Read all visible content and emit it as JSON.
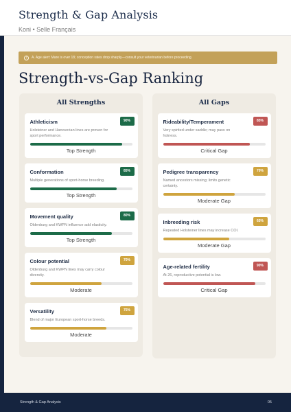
{
  "header": {
    "title": "Strength & Gap Analysis",
    "subtitle": "Koni • Selle Français"
  },
  "alert": {
    "text": "A. Age alert: Mare is over 18; conception rates drop sharply—consult your veterinarian before proceeding."
  },
  "page_title": "Strength-vs-Gap Ranking",
  "colors": {
    "strong": "#1c6b48",
    "moderate": "#cfa43e",
    "critical": "#c05654",
    "navy": "#15243f"
  },
  "strengths": {
    "title": "All Strengths",
    "items": [
      {
        "name": "Athleticism",
        "desc": "Holsteiner and Hanoverian lines are proven for sport performance.",
        "badge": "90%",
        "value": 0.9,
        "level": "Top Strength",
        "tone": "strong"
      },
      {
        "name": "Conformation",
        "desc": "Multiple generations of sport-horse breeding.",
        "badge": "85%",
        "value": 0.85,
        "level": "Top Strength",
        "tone": "strong"
      },
      {
        "name": "Movement quality",
        "desc": "Oldenburg and KWPN influence add elasticity.",
        "badge": "80%",
        "value": 0.8,
        "level": "Top Strength",
        "tone": "strong"
      },
      {
        "name": "Colour potential",
        "desc": "Oldenburg and KWPN lines may carry colour diversity.",
        "badge": "70%",
        "value": 0.7,
        "level": "Moderate",
        "tone": "moderate"
      },
      {
        "name": "Versatility",
        "desc": "Blend of major European sport-horse breeds.",
        "badge": "75%",
        "value": 0.75,
        "level": "Moderate",
        "tone": "moderate"
      }
    ]
  },
  "gaps": {
    "title": "All Gaps",
    "items": [
      {
        "name": "Rideability/Temperament",
        "desc": "Very spirited under saddle; may pass on hotness.",
        "badge": "85%",
        "value": 0.85,
        "level": "Critical Gap",
        "tone": "critical"
      },
      {
        "name": "Pedigree transparency",
        "desc": "Named ancestors missing; limits genetic certainty.",
        "badge": "70%",
        "value": 0.7,
        "level": "Moderate Gap",
        "tone": "moderate"
      },
      {
        "name": "Inbreeding risk",
        "desc": "Repeated Holsteiner lines may increase COI.",
        "badge": "65%",
        "value": 0.65,
        "level": "Moderate Gap",
        "tone": "moderate"
      },
      {
        "name": "Age-related fertility",
        "desc": "At 26, reproductive potential is low.",
        "badge": "90%",
        "value": 0.9,
        "level": "Critical Gap",
        "tone": "critical"
      }
    ]
  },
  "footer": {
    "left": "Strength & Gap Analysis",
    "right": "05"
  }
}
